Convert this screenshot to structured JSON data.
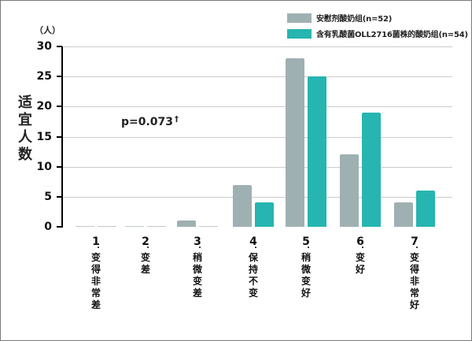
{
  "chart_data": {
    "type": "bar",
    "title": "",
    "ylabel": "适宜人数",
    "yunit": "（人）",
    "xlabel": "",
    "ylim": [
      0,
      30
    ],
    "yticks": [
      0,
      5,
      10,
      15,
      20,
      25,
      30
    ],
    "grid": true,
    "legend_position": "top-right",
    "categories": [
      "1.变得非常差",
      "2.变差",
      "3.稍微变差",
      "4.保持不变",
      "5.稍微变好",
      "6.变好",
      "7.变得非常好"
    ],
    "category_numbers": [
      "1",
      "2",
      "3",
      "4",
      "5",
      "6",
      "7"
    ],
    "category_texts": [
      "变得非常差",
      "变差",
      "稍微变差",
      "保持不变",
      "稍微变好",
      "变好",
      "变得非常好"
    ],
    "series": [
      {
        "name": "安慰剂酸奶组(n=52)",
        "color": "#9fb0b2",
        "values": [
          0,
          0,
          1,
          7,
          28,
          12,
          4
        ]
      },
      {
        "name": "含有乳酸菌OLL2716菌株的酸奶组(n=54)",
        "color": "#26b5b0",
        "values": [
          0,
          0,
          0,
          4,
          25,
          19,
          6
        ]
      }
    ],
    "annotations": [
      {
        "text": "p=0.073",
        "marker": "†"
      }
    ]
  }
}
